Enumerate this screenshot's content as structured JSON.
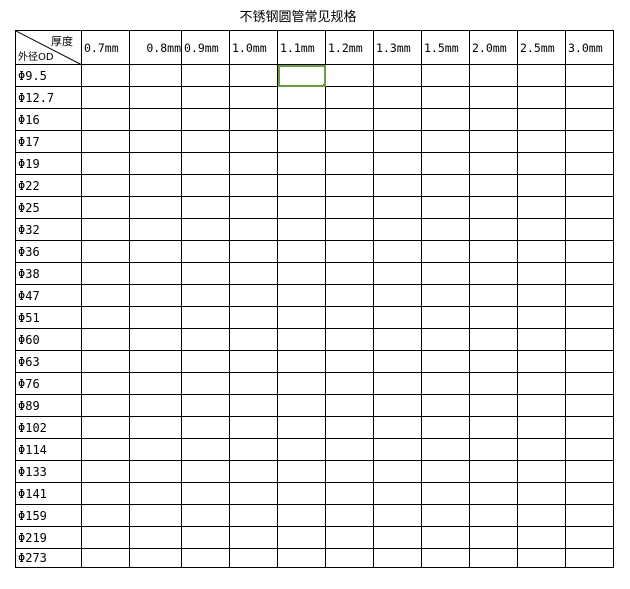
{
  "title": "不锈钢圆管常见规格",
  "corner": {
    "top": "厚度",
    "bottom": "外径OD"
  },
  "thickness": [
    "0.7mm",
    "0.8mm",
    "0.9mm",
    "1.0mm",
    "1.1mm",
    "1.2mm",
    "1.3mm",
    "1.5mm",
    "2.0mm",
    "2.5mm",
    "3.0mm"
  ],
  "diameters": [
    "Φ9.5",
    "Φ12.7",
    "Φ16",
    "Φ17",
    "Φ19",
    "Φ22",
    "Φ25",
    "Φ32",
    "Φ36",
    "Φ38",
    "Φ47",
    "Φ51",
    "Φ60",
    "Φ63",
    "Φ76",
    "Φ89",
    "Φ102",
    "Φ114",
    "Φ133",
    "Φ141",
    "Φ159",
    "Φ219",
    "Φ273"
  ],
  "selected_cell": {
    "row": "Φ9.5",
    "column": "1.1mm"
  },
  "colors": {
    "selection": "#6a9e3f"
  }
}
